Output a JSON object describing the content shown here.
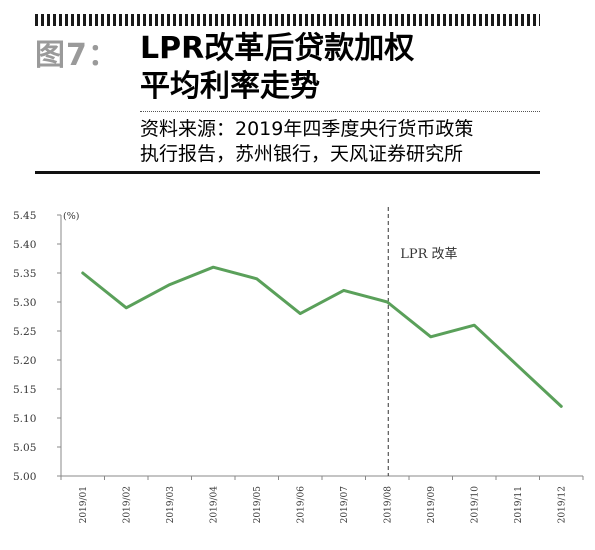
{
  "header": {
    "figure_label": "图7：",
    "title_line1": "LPR改革后贷款加权",
    "title_line2": "平均利率走势",
    "source_line1": "资料来源：2019年四季度央行货币政策",
    "source_line2": "执行报告，苏州银行，天风证券研究所"
  },
  "chart_data": {
    "type": "line",
    "unit": "(%)",
    "categories": [
      "2019/01",
      "2019/02",
      "2019/03",
      "2019/04",
      "2019/05",
      "2019/06",
      "2019/07",
      "2019/08",
      "2019/09",
      "2019/10",
      "2019/11",
      "2019/12"
    ],
    "series": [
      {
        "values": [
          5.35,
          5.29,
          5.33,
          5.36,
          5.34,
          5.28,
          5.32,
          5.3,
          5.24,
          5.26,
          5.19,
          5.12
        ],
        "color": "#5aa05a"
      }
    ],
    "ylim": [
      5.0,
      5.45
    ],
    "yticks": [
      "5.45",
      "5.40",
      "5.35",
      "5.30",
      "5.25",
      "5.20",
      "5.15",
      "5.10",
      "5.05",
      "5.00"
    ],
    "annotation": {
      "text": "LPR 改革",
      "after_category": "2019/08"
    },
    "grid": false
  }
}
